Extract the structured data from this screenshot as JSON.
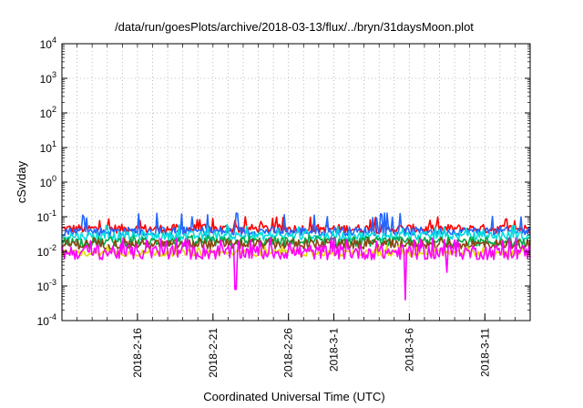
{
  "chart_data": {
    "type": "line",
    "title": "/data/run/goesPlots/archive/2018-03-13/flux/../bryn/31daysMoon.plot",
    "xlabel": "Coordinated Universal Time (UTC)",
    "ylabel": "cSv/day",
    "yscale": "log",
    "ylim": [
      0.0001,
      10000
    ],
    "xlim": [
      "2018-02-11",
      "2018-03-14"
    ],
    "grid": true,
    "x_ticks": [
      "2018-2-16",
      "2018-2-21",
      "2018-2-26",
      "2018-3-1",
      "2018-3-6",
      "2018-3-11"
    ],
    "y_ticks": [
      {
        "value": 0.0001,
        "base": "10",
        "exp": "-4"
      },
      {
        "value": 0.001,
        "base": "10",
        "exp": "-3"
      },
      {
        "value": 0.01,
        "base": "10",
        "exp": "-2"
      },
      {
        "value": 0.1,
        "base": "10",
        "exp": "-1"
      },
      {
        "value": 1,
        "base": "10",
        "exp": "0"
      },
      {
        "value": 10,
        "base": "10",
        "exp": "1"
      },
      {
        "value": 100,
        "base": "10",
        "exp": "2"
      },
      {
        "value": 1000,
        "base": "10",
        "exp": "3"
      },
      {
        "value": 10000,
        "base": "10",
        "exp": "4"
      }
    ],
    "series": [
      {
        "color": "#ff0000",
        "level": 0.045,
        "spread": 0.13,
        "spike_level": 0.1,
        "dips": []
      },
      {
        "color": "#2266ff",
        "level": 0.038,
        "spread": 0.13,
        "spike_level": 0.13,
        "dips": []
      },
      {
        "color": "#00dddd",
        "level": 0.028,
        "spread": 0.13,
        "spike_level": 0.06,
        "dips": []
      },
      {
        "color": "#00aa44",
        "level": 0.019,
        "spread": 0.14,
        "spike_level": 0.03,
        "dips": []
      },
      {
        "color": "#8b4513",
        "level": 0.016,
        "spread": 0.14,
        "spike_level": 0.025,
        "dips": []
      },
      {
        "color": "#dddd00",
        "level": 0.009,
        "spread": 0.1,
        "spike_level": 0.015,
        "dips": []
      },
      {
        "color": "#ff00ff",
        "level": 0.0095,
        "spread": 0.22,
        "spike_level": 0.025,
        "dips": [
          {
            "date": "2018-02-22T12:00",
            "value": 0.0008
          },
          {
            "date": "2018-03-05T18:00",
            "value": 0.0004
          },
          {
            "date": "2018-03-08T12:00",
            "value": 0.0025
          }
        ]
      }
    ]
  }
}
